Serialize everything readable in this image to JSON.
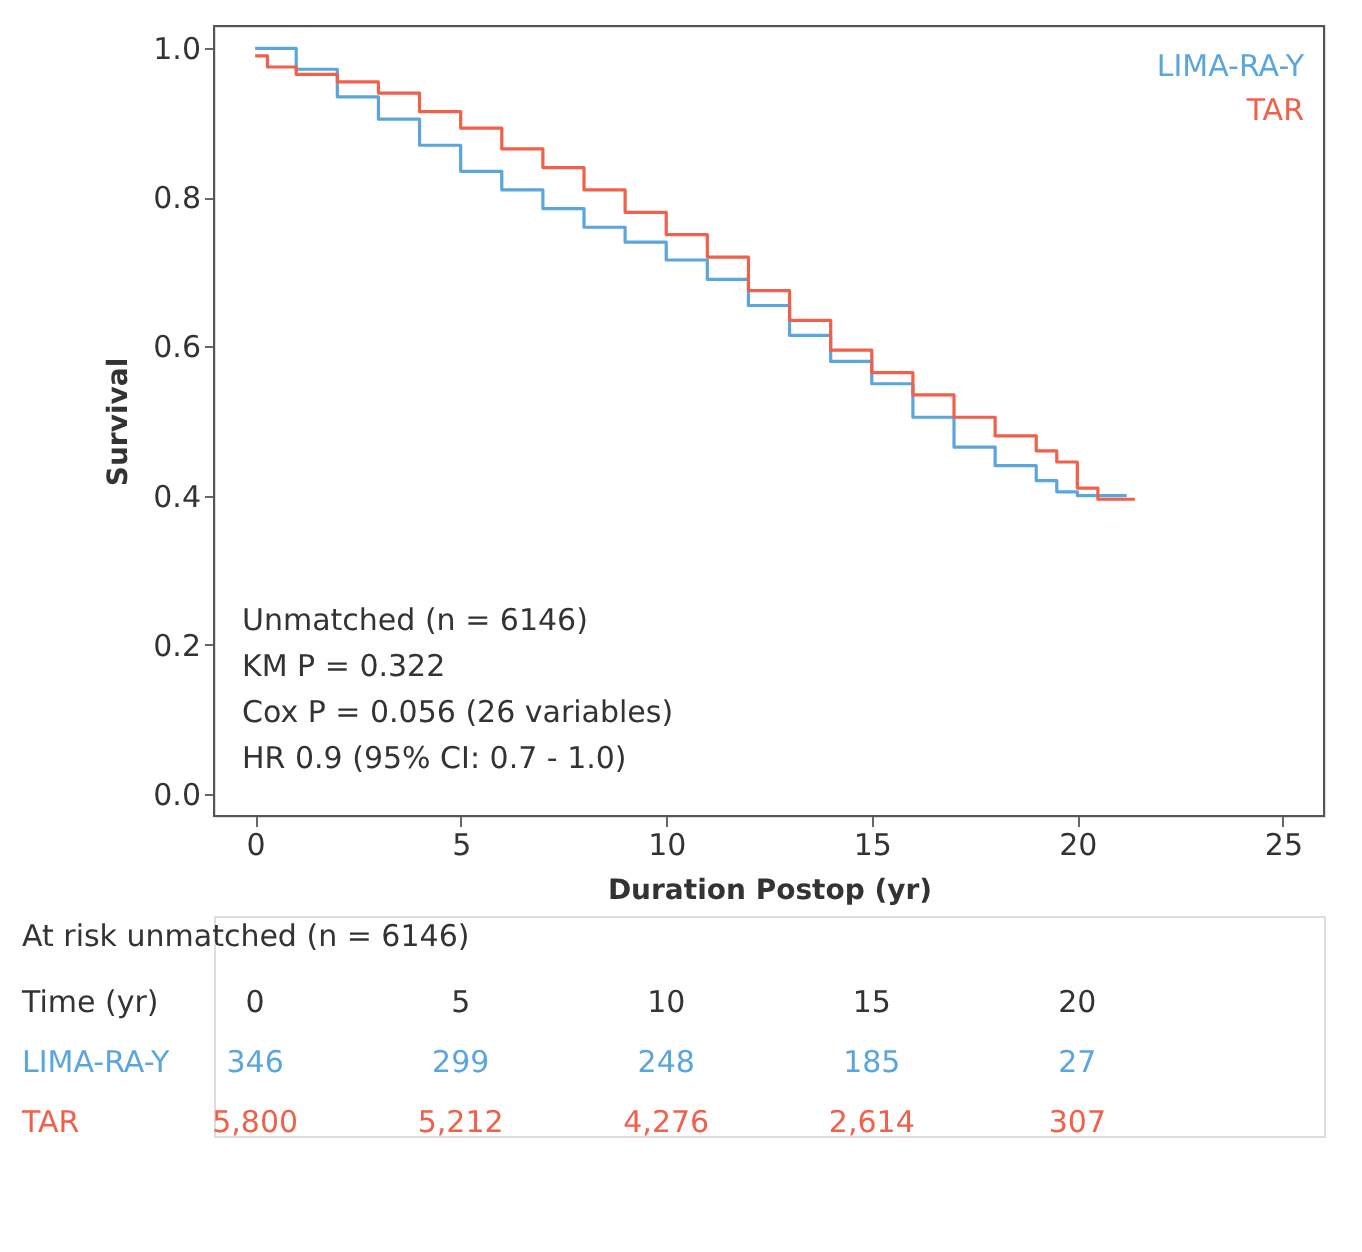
{
  "chart_data": {
    "type": "step",
    "xlabel": "Duration Postop (yr)",
    "ylabel": "Survival",
    "x": [
      0,
      1,
      2,
      3,
      4,
      5,
      6,
      7,
      8,
      9,
      10,
      11,
      12,
      13,
      14,
      15,
      16,
      17,
      18,
      19,
      19.5,
      20,
      21.2
    ],
    "series": [
      {
        "name": "LIMA-RA-Y",
        "color": "#5aa6dc",
        "values": [
          1.0,
          0.972,
          0.935,
          0.905,
          0.87,
          0.835,
          0.81,
          0.785,
          0.76,
          0.74,
          0.716,
          0.69,
          0.655,
          0.615,
          0.58,
          0.55,
          0.505,
          0.465,
          0.44,
          0.42,
          0.405,
          0.4,
          0.4
        ]
      },
      {
        "name": "TAR",
        "color": "#f0604a",
        "x": [
          0,
          0.3,
          1,
          2,
          3,
          4,
          5,
          6,
          7,
          8,
          9,
          10,
          11,
          12,
          13,
          14,
          15,
          16,
          17,
          18,
          19,
          19.5,
          20,
          20.5,
          21.4
        ],
        "values": [
          0.99,
          0.975,
          0.965,
          0.955,
          0.94,
          0.915,
          0.893,
          0.865,
          0.84,
          0.81,
          0.78,
          0.75,
          0.72,
          0.675,
          0.635,
          0.595,
          0.565,
          0.535,
          0.505,
          0.48,
          0.46,
          0.445,
          0.41,
          0.395,
          0.395
        ]
      }
    ],
    "xlim": [
      -1,
      26
    ],
    "xticks": [
      0,
      5,
      10,
      15,
      20,
      25
    ],
    "ylim": [
      -0.03,
      1.03
    ],
    "yticks": [
      {
        "value": 0,
        "label": "0.0"
      },
      0.2,
      0.4,
      0.6,
      0.8,
      {
        "value": 1,
        "label": "1.0"
      }
    ],
    "legend": "top right",
    "grid": false,
    "line_style": "solid",
    "marker": "none",
    "annotations": [
      "Unmatched (n = 6146)",
      "KM P = 0.322",
      "Cox P = 0.056 (26 variables)",
      "HR 0.9 (95% CI: 0.7 - 1.0)",
      "At risk unmatched (n = 6146)",
      "Time (yr)",
      "0",
      "5",
      "10",
      "15",
      "20",
      "LIMA-RA-Y",
      "346",
      "299",
      "248",
      "185",
      "27",
      "TAR",
      "5,800",
      "5,212",
      "4,276",
      "2,614",
      "307"
    ]
  }
}
